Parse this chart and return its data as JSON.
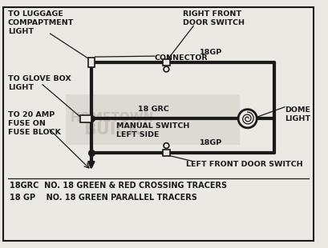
{
  "bg_color": "#ece9e4",
  "line_color": "#1a1a1a",
  "lw_main": 3.0,
  "lw_thin": 1.0,
  "fs_label": 6.8,
  "fs_legend": 7.0,
  "labels": {
    "luggage": "TO LUGGAGE\nCOMPAPTMENT\nLIGHT",
    "glove": "TO GLOVE BOX\nLIGHT",
    "fuse": "TO 20 AMP\nFUSE ON\nFUSE BLOCK",
    "connector": "CONNECTOR",
    "18grc": "18 GRC",
    "right_switch_label": "RIGHT FRONT\nDOOR SWITCH",
    "18gp_top": "18GP",
    "dome": "DOME\nLIGHT",
    "manual": "MANUAL SWITCH\nLEFT SIDE",
    "left_switch_label": "LEFT FRONT DOOR SWITCH",
    "18gp_bot": "18GP",
    "legend1": "18GRC  NO. 18 GREEN & RED CROSSING TRACERS",
    "legend2": "18 GP    NO. 18 GREEN PARALLEL TRACERS"
  }
}
